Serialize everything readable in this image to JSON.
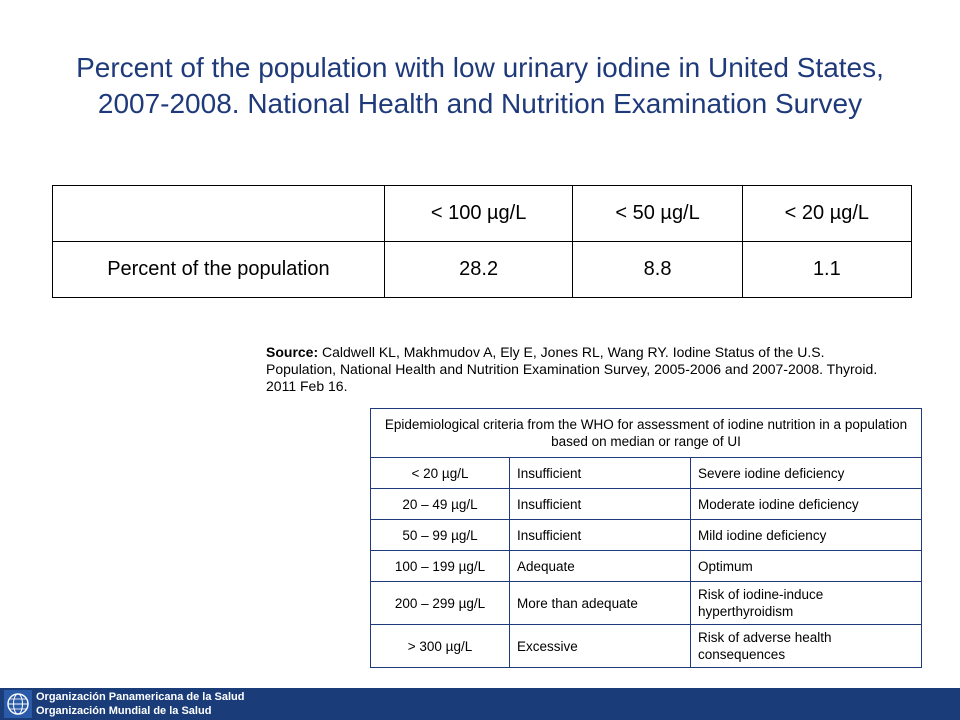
{
  "title": "Percent of the population with low urinary iodine in United States, 2007-2008. National Health and Nutrition Examination Survey",
  "main_table": {
    "headers": [
      "",
      "< 100 µg/L",
      "< 50 µg/L",
      "< 20 µg/L"
    ],
    "row": {
      "label": "Percent of the population",
      "values": [
        "28.2",
        "8.8",
        "1.1"
      ]
    }
  },
  "source": {
    "label": "Source:",
    "text": " Caldwell KL, Makhmudov A, Ely E, Jones RL, Wang RY. Iodine Status of the U.S. Population, National Health and Nutrition Examination Survey, 2005-2006 and 2007-2008. Thyroid. 2011 Feb 16."
  },
  "who_table": {
    "header": "Epidemiological criteria from the WHO for assessment of iodine nutrition in a population based on median or range of UI",
    "rows": [
      [
        "< 20 µg/L",
        "Insufficient",
        "Severe iodine deficiency"
      ],
      [
        "20 – 49 µg/L",
        "Insufficient",
        "Moderate iodine deficiency"
      ],
      [
        "50 – 99 µg/L",
        "Insufficient",
        "Mild iodine deficiency"
      ],
      [
        "100 – 199 µg/L",
        "Adequate",
        "Optimum"
      ],
      [
        "200 – 299 µg/L",
        "More than adequate",
        "Risk of iodine-induce hyperthyroidism"
      ],
      [
        "> 300 µg/L",
        "Excessive",
        "Risk of adverse health consequences"
      ]
    ]
  },
  "footer": {
    "line1": "Organización Panamericana de la Salud",
    "line2": "Organización Mundial de la Salud",
    "logo_icon": "globe-emblem-icon",
    "color": "#1a3d7a"
  }
}
